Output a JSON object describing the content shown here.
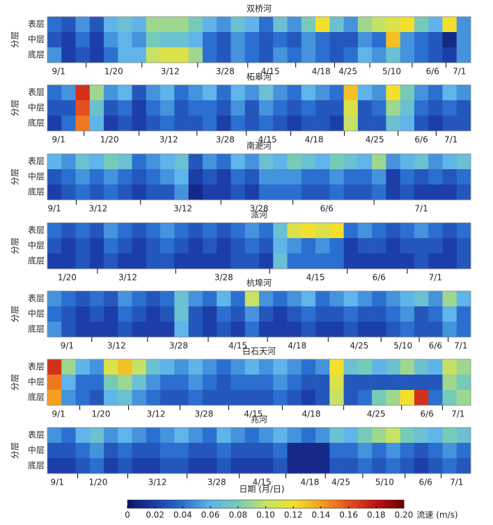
{
  "x_label": "日期 (月/日)",
  "y_label": "分层",
  "row_labels": [
    "表层",
    "中层",
    "底层"
  ],
  "colormap": [
    "#0b1468",
    "#1c3ea8",
    "#2b6fd0",
    "#5fb4ea",
    "#76cbb8",
    "#c6e266",
    "#f2e02c",
    "#f4a020",
    "#e65020",
    "#c01212",
    "#6e0000"
  ],
  "colorbar": {
    "label": "流速 (m/s)",
    "lim": [
      0,
      0.2
    ],
    "ticks": [
      0,
      0.02,
      0.04,
      0.06,
      0.08,
      {
        "value": 0.1,
        "label": "0.10"
      },
      0.12,
      0.14,
      0.16,
      0.18,
      {
        "value": 0.2,
        "label": "0.20"
      }
    ]
  },
  "chart_data": [
    {
      "type": "heatmap",
      "title": "双桥河",
      "xlim": [
        0,
        30
      ],
      "xticks": [
        {
          "value": 0.8,
          "label": "9/1"
        },
        {
          "value": 4.7,
          "label": "1/20"
        },
        {
          "value": 8.7,
          "label": "3/12"
        },
        {
          "value": 12.6,
          "label": "3/28"
        },
        {
          "value": 15.8,
          "label": "4/15"
        },
        {
          "value": 19.4,
          "label": "4/18"
        },
        {
          "value": 21.3,
          "label": "4/25"
        },
        {
          "value": 24.4,
          "label": "5/10"
        },
        {
          "value": 27.3,
          "label": "6/6"
        },
        {
          "value": 29.2,
          "label": "7/1"
        }
      ],
      "values": [
        [
          0.04,
          0.03,
          0.05,
          0.03,
          0.06,
          0.07,
          0.06,
          0.09,
          0.09,
          0.09,
          0.08,
          0.06,
          0.05,
          0.07,
          0.06,
          0.04,
          0.07,
          0.05,
          0.08,
          0.12,
          0.07,
          0.05,
          0.09,
          0.1,
          0.11,
          0.12,
          0.08,
          0.06,
          0.12,
          0.05
        ],
        [
          0.03,
          0.02,
          0.04,
          0.02,
          0.05,
          0.06,
          0.05,
          0.08,
          0.07,
          0.07,
          0.06,
          0.04,
          0.03,
          0.05,
          0.04,
          0.03,
          0.04,
          0.03,
          0.05,
          0.04,
          0.03,
          0.03,
          0.05,
          0.04,
          0.13,
          0.05,
          0.04,
          0.03,
          0.01,
          0.05
        ],
        [
          0.05,
          0.02,
          0.03,
          0.02,
          0.04,
          0.06,
          0.06,
          0.1,
          0.11,
          0.11,
          0.09,
          0.04,
          0.03,
          0.05,
          0.04,
          0.03,
          0.05,
          0.04,
          0.05,
          0.04,
          0.03,
          0.04,
          0.06,
          0.05,
          0.07,
          0.05,
          0.04,
          0.03,
          0.02,
          0.05
        ]
      ]
    },
    {
      "type": "heatmap",
      "title": "柘皋河",
      "xlim": [
        0,
        30
      ],
      "xticks": [
        {
          "value": 0.8,
          "label": "9/1"
        },
        {
          "value": 4.4,
          "label": "1/20"
        },
        {
          "value": 8.6,
          "label": "3/12"
        },
        {
          "value": 12.6,
          "label": "3/28"
        },
        {
          "value": 15.6,
          "label": "4/15"
        },
        {
          "value": 18.9,
          "label": "4/18"
        },
        {
          "value": 23.2,
          "label": "4/25"
        },
        {
          "value": 26.5,
          "label": "6/6"
        },
        {
          "value": 28.6,
          "label": "7/1"
        }
      ],
      "values": [
        [
          0.04,
          0.05,
          0.17,
          0.09,
          0.05,
          0.06,
          0.03,
          0.05,
          0.06,
          0.04,
          0.05,
          0.06,
          0.04,
          0.06,
          0.05,
          0.07,
          0.05,
          0.04,
          0.06,
          0.05,
          0.04,
          0.13,
          0.06,
          0.05,
          0.12,
          0.08,
          0.05,
          0.04,
          0.06,
          0.05
        ],
        [
          0.03,
          0.03,
          0.16,
          0.07,
          0.03,
          0.04,
          0.02,
          0.04,
          0.05,
          0.03,
          0.04,
          0.04,
          0.03,
          0.05,
          0.03,
          0.05,
          0.04,
          0.03,
          0.04,
          0.03,
          0.03,
          0.11,
          0.03,
          0.04,
          0.09,
          0.07,
          0.04,
          0.03,
          0.04,
          0.03
        ],
        [
          0.02,
          0.04,
          0.15,
          0.06,
          0.02,
          0.03,
          0.02,
          0.03,
          0.04,
          0.03,
          0.03,
          0.04,
          0.02,
          0.04,
          0.03,
          0.04,
          0.03,
          0.02,
          0.03,
          0.03,
          0.02,
          0.1,
          0.03,
          0.03,
          0.07,
          0.06,
          0.03,
          0.02,
          0.03,
          0.03
        ]
      ]
    },
    {
      "type": "heatmap",
      "title": "南淝河",
      "xlim": [
        0,
        30
      ],
      "xticks": [
        {
          "value": 0.5,
          "label": "9/1"
        },
        {
          "value": 3.6,
          "label": "3/12"
        },
        {
          "value": 9.6,
          "label": "3/12"
        },
        {
          "value": 15.0,
          "label": "3/28"
        },
        {
          "value": 19.8,
          "label": "6/6"
        },
        {
          "value": 26.5,
          "label": "7/1"
        }
      ],
      "values": [
        [
          0.06,
          0.05,
          0.07,
          0.06,
          0.08,
          0.07,
          0.04,
          0.05,
          0.06,
          0.07,
          0.03,
          0.05,
          0.04,
          0.06,
          0.05,
          0.07,
          0.06,
          0.08,
          0.07,
          0.06,
          0.08,
          0.07,
          0.06,
          0.09,
          0.05,
          0.06,
          0.07,
          0.05,
          0.06,
          0.07
        ],
        [
          0.03,
          0.04,
          0.05,
          0.04,
          0.05,
          0.04,
          0.03,
          0.04,
          0.05,
          0.06,
          0.02,
          0.03,
          0.02,
          0.04,
          0.03,
          0.05,
          0.05,
          0.05,
          0.04,
          0.04,
          0.05,
          0.04,
          0.04,
          0.05,
          0.02,
          0.04,
          0.03,
          0.04,
          0.03,
          0.04
        ],
        [
          0.02,
          0.03,
          0.04,
          0.03,
          0.04,
          0.03,
          0.02,
          0.03,
          0.03,
          0.05,
          0.01,
          0.02,
          0.02,
          0.03,
          0.02,
          0.04,
          0.04,
          0.04,
          0.03,
          0.03,
          0.04,
          0.03,
          0.03,
          0.04,
          0.02,
          0.03,
          0.02,
          0.02,
          0.02,
          0.03
        ]
      ]
    },
    {
      "type": "heatmap",
      "title": "派河",
      "xlim": [
        0,
        30
      ],
      "xticks": [
        {
          "value": 1.4,
          "label": "1/20"
        },
        {
          "value": 5.7,
          "label": "3/12"
        },
        {
          "value": 12.5,
          "label": "3/28"
        },
        {
          "value": 19.0,
          "label": "4/15"
        },
        {
          "value": 23.5,
          "label": "6/6"
        },
        {
          "value": 27.5,
          "label": "7/1"
        }
      ],
      "values": [
        [
          0.04,
          0.03,
          0.04,
          0.03,
          0.05,
          0.04,
          0.03,
          0.04,
          0.05,
          0.04,
          0.03,
          0.04,
          0.03,
          0.04,
          0.05,
          0.04,
          0.07,
          0.11,
          0.12,
          0.11,
          0.12,
          0.04,
          0.05,
          0.04,
          0.03,
          0.04,
          0.05,
          0.04,
          0.03,
          0.04
        ],
        [
          0.03,
          0.02,
          0.03,
          0.02,
          0.04,
          0.03,
          0.02,
          0.03,
          0.04,
          0.03,
          0.02,
          0.03,
          0.02,
          0.03,
          0.04,
          0.03,
          0.06,
          0.05,
          0.04,
          0.05,
          0.04,
          0.02,
          0.03,
          0.03,
          0.02,
          0.03,
          0.03,
          0.03,
          0.02,
          0.03
        ],
        [
          0.02,
          0.02,
          0.03,
          0.02,
          0.03,
          0.02,
          0.02,
          0.03,
          0.03,
          0.02,
          0.02,
          0.02,
          0.02,
          0.03,
          0.03,
          0.02,
          0.07,
          0.04,
          0.04,
          0.04,
          0.04,
          0.02,
          0.02,
          0.02,
          0.02,
          0.02,
          0.03,
          0.02,
          0.02,
          0.03
        ]
      ]
    },
    {
      "type": "heatmap",
      "title": "杭埠河",
      "xlim": [
        0,
        30
      ],
      "xticks": [
        {
          "value": 1.4,
          "label": "9/1"
        },
        {
          "value": 4.9,
          "label": "3/12"
        },
        {
          "value": 9.3,
          "label": "3/28"
        },
        {
          "value": 13.5,
          "label": "4/15"
        },
        {
          "value": 17.7,
          "label": "4/18"
        },
        {
          "value": 22.1,
          "label": "4/25"
        },
        {
          "value": 25.2,
          "label": "5/10"
        },
        {
          "value": 27.5,
          "label": "6/6"
        },
        {
          "value": 29.3,
          "label": "7/1"
        }
      ],
      "values": [
        [
          0.05,
          0.04,
          0.03,
          0.04,
          0.03,
          0.05,
          0.04,
          0.03,
          0.04,
          0.07,
          0.05,
          0.04,
          0.06,
          0.04,
          0.1,
          0.05,
          0.04,
          0.05,
          0.06,
          0.04,
          0.05,
          0.06,
          0.05,
          0.04,
          0.05,
          0.06,
          0.07,
          0.05,
          0.09,
          0.06
        ],
        [
          0.04,
          0.03,
          0.02,
          0.03,
          0.02,
          0.04,
          0.03,
          0.02,
          0.03,
          0.07,
          0.03,
          0.02,
          0.04,
          0.03,
          0.05,
          0.03,
          0.02,
          0.03,
          0.04,
          0.03,
          0.03,
          0.04,
          0.03,
          0.03,
          0.04,
          0.05,
          0.03,
          0.04,
          0.06,
          0.04
        ],
        [
          0.05,
          0.03,
          0.02,
          0.02,
          0.02,
          0.03,
          0.02,
          0.02,
          0.02,
          0.06,
          0.03,
          0.02,
          0.03,
          0.02,
          0.04,
          0.02,
          0.02,
          0.02,
          0.03,
          0.02,
          0.02,
          0.03,
          0.02,
          0.02,
          0.03,
          0.04,
          0.03,
          0.03,
          0.05,
          0.04
        ]
      ]
    },
    {
      "type": "heatmap",
      "title": "白石天河",
      "xlim": [
        0,
        30
      ],
      "xticks": [
        {
          "value": 0.8,
          "label": "9/1"
        },
        {
          "value": 3.8,
          "label": "1/20"
        },
        {
          "value": 7.7,
          "label": "3/12"
        },
        {
          "value": 11.1,
          "label": "3/28"
        },
        {
          "value": 14.6,
          "label": "4/15"
        },
        {
          "value": 18.7,
          "label": "4/18"
        },
        {
          "value": 23.3,
          "label": "4/25"
        },
        {
          "value": 26.9,
          "label": "6/6"
        },
        {
          "value": 29.1,
          "label": "7/1"
        }
      ],
      "values": [
        [
          0.17,
          0.09,
          0.06,
          0.05,
          0.11,
          0.13,
          0.1,
          0.07,
          0.06,
          0.05,
          0.06,
          0.05,
          0.04,
          0.05,
          0.06,
          0.05,
          0.06,
          0.05,
          0.04,
          0.05,
          0.12,
          0.07,
          0.08,
          0.06,
          0.07,
          0.09,
          0.07,
          0.06,
          0.1,
          0.09
        ],
        [
          0.15,
          0.06,
          0.04,
          0.04,
          0.08,
          0.09,
          0.07,
          0.05,
          0.04,
          0.04,
          0.05,
          0.04,
          0.03,
          0.04,
          0.04,
          0.04,
          0.05,
          0.04,
          0.03,
          0.03,
          0.11,
          0.03,
          0.03,
          0.03,
          0.03,
          0.03,
          0.03,
          0.03,
          0.09,
          0.08
        ],
        [
          0.14,
          0.05,
          0.04,
          0.03,
          0.06,
          0.07,
          0.05,
          0.04,
          0.03,
          0.03,
          0.04,
          0.03,
          0.03,
          0.03,
          0.03,
          0.03,
          0.04,
          0.03,
          0.02,
          0.03,
          0.1,
          0.03,
          0.04,
          0.08,
          0.09,
          0.12,
          0.17,
          0.04,
          0.08,
          0.09
        ]
      ]
    },
    {
      "type": "heatmap",
      "title": "兆河",
      "xlim": [
        0,
        30
      ],
      "xticks": [
        {
          "value": 0.7,
          "label": "9/1"
        },
        {
          "value": 3.6,
          "label": "1/20"
        },
        {
          "value": 7.8,
          "label": "3/12"
        },
        {
          "value": 12.0,
          "label": "3/28"
        },
        {
          "value": 15.2,
          "label": "4/15"
        },
        {
          "value": 18.6,
          "label": "4/18"
        },
        {
          "value": 20.8,
          "label": "4/25"
        },
        {
          "value": 23.9,
          "label": "5/10"
        },
        {
          "value": 26.8,
          "label": "6/6"
        },
        {
          "value": 29.0,
          "label": "7/1"
        }
      ],
      "values": [
        [
          0.05,
          0.04,
          0.06,
          0.07,
          0.05,
          0.06,
          0.05,
          0.04,
          0.05,
          0.06,
          0.05,
          0.04,
          0.06,
          0.05,
          0.04,
          0.05,
          0.06,
          0.05,
          0.04,
          0.05,
          0.07,
          0.06,
          0.08,
          0.09,
          0.1,
          0.08,
          0.07,
          0.06,
          0.08,
          0.07
        ],
        [
          0.03,
          0.03,
          0.04,
          0.05,
          0.03,
          0.04,
          0.03,
          0.03,
          0.04,
          0.04,
          0.03,
          0.03,
          0.04,
          0.03,
          0.03,
          0.03,
          0.04,
          0.01,
          0.01,
          0.01,
          0.04,
          0.04,
          0.05,
          0.04,
          0.05,
          0.04,
          0.03,
          0.04,
          0.05,
          0.04
        ],
        [
          0.02,
          0.02,
          0.03,
          0.04,
          0.02,
          0.03,
          0.02,
          0.02,
          0.03,
          0.03,
          0.02,
          0.02,
          0.03,
          0.02,
          0.02,
          0.02,
          0.03,
          0.01,
          0.01,
          0.01,
          0.03,
          0.03,
          0.04,
          0.03,
          0.04,
          0.03,
          0.02,
          0.03,
          0.04,
          0.03
        ]
      ]
    }
  ]
}
